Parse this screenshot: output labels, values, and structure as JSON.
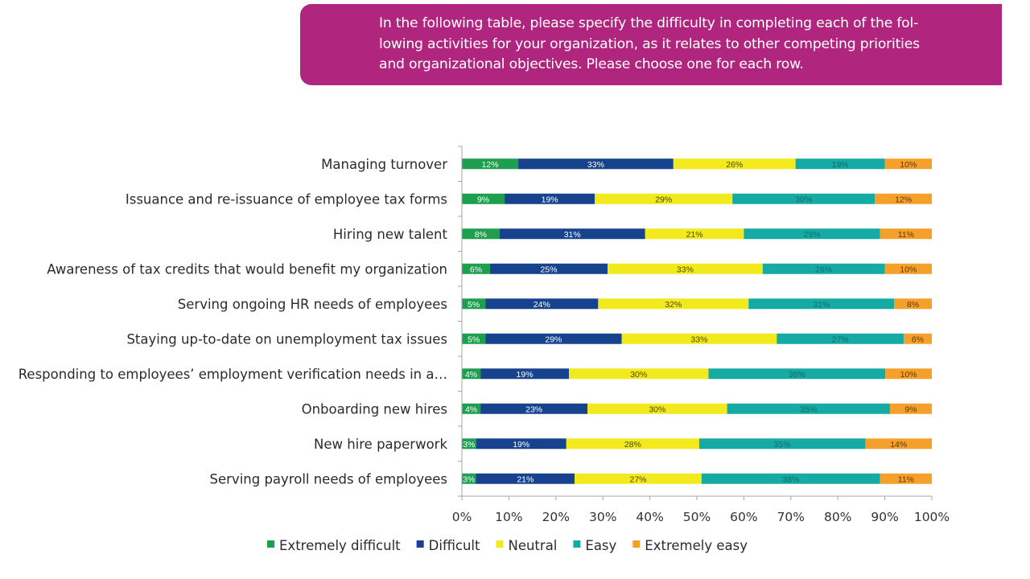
{
  "header": {
    "text": "In the following table, please specify the difficulty in completing each of the fol-\nlowing activities for your organization, as it relates to other competing priorities\nand organizational objectives. Please choose one for each row.",
    "background_color": "#B0267F"
  },
  "chart_data": {
    "type": "bar",
    "orientation": "horizontal",
    "stacked": true,
    "normalized": true,
    "title": "",
    "xlabel": "",
    "ylabel": "",
    "xlim": [
      0,
      100
    ],
    "x_ticks": [
      "0%",
      "10%",
      "20%",
      "30%",
      "40%",
      "50%",
      "60%",
      "70%",
      "80%",
      "90%",
      "100%"
    ],
    "grid": false,
    "legend_position": "bottom",
    "categories": [
      "Managing turnover",
      "Issuance and re-issuance of employee tax forms",
      "Hiring new talent",
      "Awareness of tax credits that would benefit my organization",
      "Serving ongoing HR needs of employees",
      "Staying up-to-date on unemployment tax issues",
      "Responding to employees’ employment verification needs in a…",
      "Onboarding new hires",
      "New hire paperwork",
      "Serving payroll needs of employees"
    ],
    "series": [
      {
        "name": "Extremely difficult",
        "color": "#1E9E4F",
        "label_color": "#ffffff",
        "values": [
          12,
          9,
          8,
          6,
          5,
          5,
          4,
          4,
          3,
          3
        ]
      },
      {
        "name": "Difficult",
        "color": "#17428E",
        "label_color": "#ffffff",
        "values": [
          33,
          19,
          31,
          25,
          24,
          29,
          19,
          23,
          19,
          21
        ]
      },
      {
        "name": "Neutral",
        "color": "#F2EA1C",
        "label_color": "#4A4A10",
        "values": [
          26,
          29,
          21,
          33,
          32,
          33,
          30,
          30,
          28,
          27
        ]
      },
      {
        "name": "Easy",
        "color": "#15AAA3",
        "label_color": "#0E6E6A",
        "values": [
          19,
          30,
          29,
          26,
          31,
          27,
          38,
          35,
          35,
          38
        ]
      },
      {
        "name": "Extremely easy",
        "color": "#F4A02A",
        "label_color": "#5A3A10",
        "values": [
          10,
          12,
          11,
          10,
          8,
          6,
          10,
          9,
          14,
          11
        ]
      }
    ]
  }
}
